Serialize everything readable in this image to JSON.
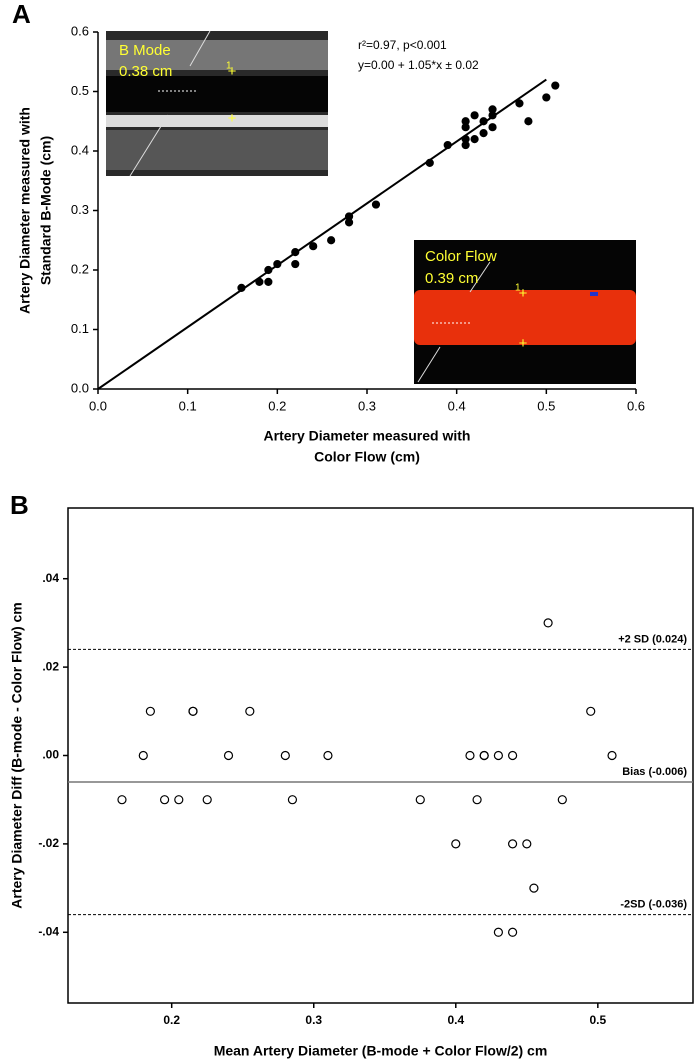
{
  "chart_data": [
    {
      "type": "scatter",
      "panel": "A",
      "x_label": [
        "Artery Diameter measured with",
        "Color Flow (cm)"
      ],
      "y_label": [
        "Artery Diameter measured with",
        "Standard B-Mode (cm)"
      ],
      "annotations": [
        "r²=0.97, p<0.001",
        "y=0.00 + 1.05*x ± 0.02"
      ],
      "insets": [
        {
          "title": "B Mode",
          "measurement": "0.38 cm",
          "marker": "1"
        },
        {
          "title": "Color Flow",
          "measurement": "0.39 cm",
          "marker": "1"
        }
      ],
      "x": [
        0.16,
        0.18,
        0.19,
        0.19,
        0.2,
        0.22,
        0.22,
        0.24,
        0.26,
        0.28,
        0.28,
        0.31,
        0.37,
        0.39,
        0.41,
        0.41,
        0.41,
        0.41,
        0.42,
        0.42,
        0.43,
        0.43,
        0.44,
        0.44,
        0.44,
        0.47,
        0.48,
        0.5,
        0.51
      ],
      "values": [
        0.17,
        0.18,
        0.18,
        0.2,
        0.21,
        0.23,
        0.21,
        0.24,
        0.25,
        0.28,
        0.29,
        0.31,
        0.38,
        0.41,
        0.41,
        0.42,
        0.44,
        0.45,
        0.42,
        0.46,
        0.43,
        0.45,
        0.44,
        0.46,
        0.47,
        0.48,
        0.45,
        0.49,
        0.51
      ],
      "marker_color": "#000000",
      "marker_filled": true,
      "fit": {
        "x": [
          0,
          0.5
        ],
        "values": [
          0,
          0.52
        ]
      },
      "xlim": [
        0,
        0.6
      ],
      "ylim": [
        0,
        0.6
      ],
      "xticks": [
        {
          "value": 0,
          "label": "0.0"
        },
        0.1,
        0.2,
        0.3,
        0.4,
        0.5,
        0.6
      ],
      "yticks": [
        {
          "value": 0,
          "label": "0.0"
        },
        0.1,
        0.2,
        0.3,
        0.4,
        0.5,
        0.6
      ],
      "frame": false
    },
    {
      "type": "scatter",
      "panel": "B",
      "x_label": [
        "Mean Artery Diameter (B-mode + Color Flow/2) cm"
      ],
      "y_label": [
        "Artery Diameter Diff (B-mode - Color Flow) cm"
      ],
      "x": [
        0.165,
        0.18,
        0.185,
        0.195,
        0.205,
        0.215,
        0.215,
        0.225,
        0.24,
        0.255,
        0.28,
        0.285,
        0.31,
        0.375,
        0.4,
        0.41,
        0.415,
        0.42,
        0.42,
        0.43,
        0.43,
        0.44,
        0.44,
        0.44,
        0.45,
        0.455,
        0.465,
        0.475,
        0.495,
        0.51
      ],
      "values": [
        -0.01,
        0.0,
        0.01,
        -0.01,
        -0.01,
        0.01,
        0.01,
        -0.01,
        0.0,
        0.01,
        0.0,
        -0.01,
        0.0,
        -0.01,
        -0.02,
        0.0,
        -0.01,
        0.0,
        0.0,
        0.0,
        -0.04,
        0.0,
        -0.02,
        -0.04,
        -0.02,
        -0.03,
        0.03,
        -0.01,
        0.01,
        0.0
      ],
      "marker_color": "#000000",
      "marker_filled": false,
      "reference_lines": [
        {
          "value": 0.024,
          "label": "+2 SD (0.024)",
          "style": "dashed"
        },
        {
          "value": -0.006,
          "label": "Bias (-0.006)",
          "style": "solid"
        },
        {
          "value": -0.036,
          "label": "-2SD (-0.036)",
          "style": "dashed"
        }
      ],
      "xlim": [
        0.127,
        0.567
      ],
      "ylim": [
        -0.056,
        0.056
      ],
      "xticks": [
        0.2,
        0.3,
        0.4,
        0.5
      ],
      "yticks": [
        {
          "value": 0.04,
          "label": ".04"
        },
        {
          "value": 0.02,
          "label": ".02"
        },
        {
          "value": 0,
          "label": ".00"
        },
        {
          "value": -0.02,
          "label": "-.02"
        },
        {
          "value": -0.04,
          "label": "-.04"
        }
      ],
      "frame": true
    }
  ]
}
